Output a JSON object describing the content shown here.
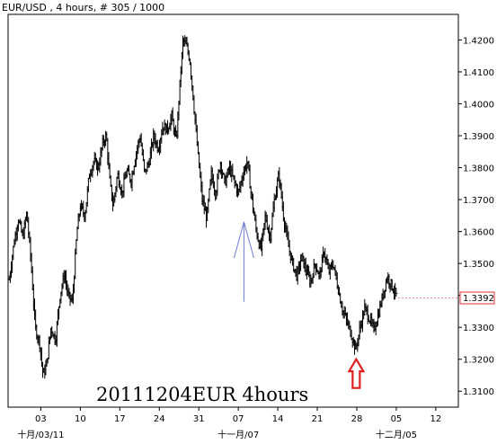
{
  "header": {
    "instrument": "EUR/USD , 4 hours, # 305 / 1000"
  },
  "chart_data": {
    "type": "ohlc",
    "title": "EUR/USD , 4 hours, # 305 / 1000",
    "annotation": "20111204EUR 4hours",
    "ylim": [
      1.305,
      1.428
    ],
    "y_ticks": [
      "1.4200",
      "1.4100",
      "1.4000",
      "1.3900",
      "1.3800",
      "1.3700",
      "1.3600",
      "1.3500",
      "1.3400",
      "1.3300",
      "1.3200",
      "1.3100"
    ],
    "y_tick_values": [
      1.42,
      1.41,
      1.4,
      1.39,
      1.38,
      1.37,
      1.36,
      1.35,
      1.34,
      1.33,
      1.32,
      1.31
    ],
    "x_ticks": [
      "03",
      "10",
      "17",
      "24",
      "31",
      "07",
      "14",
      "21",
      "28",
      "05",
      "12"
    ],
    "x_tick_days": [
      3,
      10,
      17,
      24,
      31,
      38,
      45,
      52,
      59,
      66,
      73
    ],
    "xlim_days": [
      -2.8,
      77.0
    ],
    "month_labels": [
      {
        "label": "十月/03/11",
        "day": 3
      },
      {
        "label": "十一月/07",
        "day": 38
      },
      {
        "label": "十二月/05",
        "day": 66
      }
    ],
    "last_price": "1.3392",
    "last_price_value": 1.3392,
    "price_path": [
      [
        -2.6,
        1.345
      ],
      [
        -1.8,
        1.356
      ],
      [
        -1.0,
        1.364
      ],
      [
        -0.2,
        1.358
      ],
      [
        0.5,
        1.366
      ],
      [
        1.2,
        1.352
      ],
      [
        2.0,
        1.33
      ],
      [
        2.8,
        1.325
      ],
      [
        3.4,
        1.315
      ],
      [
        4.0,
        1.318
      ],
      [
        4.8,
        1.33
      ],
      [
        5.6,
        1.326
      ],
      [
        6.4,
        1.34
      ],
      [
        7.2,
        1.347
      ],
      [
        7.8,
        1.34
      ],
      [
        8.6,
        1.338
      ],
      [
        9.4,
        1.36
      ],
      [
        10.0,
        1.368
      ],
      [
        10.8,
        1.365
      ],
      [
        11.6,
        1.378
      ],
      [
        12.4,
        1.382
      ],
      [
        13.2,
        1.38
      ],
      [
        14.0,
        1.388
      ],
      [
        14.6,
        1.39
      ],
      [
        15.2,
        1.376
      ],
      [
        15.8,
        1.368
      ],
      [
        16.6,
        1.378
      ],
      [
        17.4,
        1.372
      ],
      [
        18.2,
        1.379
      ],
      [
        19.0,
        1.376
      ],
      [
        19.8,
        1.384
      ],
      [
        20.6,
        1.39
      ],
      [
        21.4,
        1.378
      ],
      [
        22.2,
        1.382
      ],
      [
        23.0,
        1.39
      ],
      [
        23.8,
        1.386
      ],
      [
        24.6,
        1.393
      ],
      [
        25.4,
        1.392
      ],
      [
        26.2,
        1.396
      ],
      [
        27.0,
        1.388
      ],
      [
        27.6,
        1.405
      ],
      [
        28.2,
        1.42
      ],
      [
        28.8,
        1.418
      ],
      [
        29.4,
        1.414
      ],
      [
        30.0,
        1.402
      ],
      [
        30.8,
        1.385
      ],
      [
        31.6,
        1.37
      ],
      [
        32.4,
        1.364
      ],
      [
        33.2,
        1.378
      ],
      [
        34.0,
        1.372
      ],
      [
        34.8,
        1.382
      ],
      [
        35.6,
        1.375
      ],
      [
        36.4,
        1.38
      ],
      [
        37.2,
        1.376
      ],
      [
        38.0,
        1.372
      ],
      [
        38.8,
        1.378
      ],
      [
        39.6,
        1.382
      ],
      [
        40.4,
        1.37
      ],
      [
        41.2,
        1.36
      ],
      [
        42.0,
        1.354
      ],
      [
        42.8,
        1.365
      ],
      [
        43.6,
        1.358
      ],
      [
        44.4,
        1.37
      ],
      [
        45.2,
        1.378
      ],
      [
        46.0,
        1.365
      ],
      [
        46.8,
        1.356
      ],
      [
        47.6,
        1.35
      ],
      [
        48.4,
        1.346
      ],
      [
        49.2,
        1.352
      ],
      [
        50.0,
        1.348
      ],
      [
        50.8,
        1.344
      ],
      [
        51.6,
        1.35
      ],
      [
        52.4,
        1.346
      ],
      [
        53.2,
        1.354
      ],
      [
        54.0,
        1.347
      ],
      [
        54.8,
        1.35
      ],
      [
        55.6,
        1.343
      ],
      [
        56.4,
        1.336
      ],
      [
        57.2,
        1.332
      ],
      [
        58.0,
        1.328
      ],
      [
        58.8,
        1.323
      ],
      [
        59.6,
        1.33
      ],
      [
        60.4,
        1.336
      ],
      [
        61.2,
        1.333
      ],
      [
        62.0,
        1.329
      ],
      [
        62.8,
        1.334
      ],
      [
        63.6,
        1.34
      ],
      [
        64.4,
        1.346
      ],
      [
        65.2,
        1.343
      ],
      [
        66.0,
        1.34
      ]
    ],
    "callouts": [
      {
        "type": "outline-arrow-up",
        "color": "#6b7ed6",
        "tip_day": 39.0,
        "tip_value": 1.363,
        "base_value": 1.338
      },
      {
        "type": "block-arrow-up",
        "color": "#e02020",
        "tip_day": 58.9,
        "tip_value": 1.32,
        "base_value": 1.311
      }
    ]
  }
}
